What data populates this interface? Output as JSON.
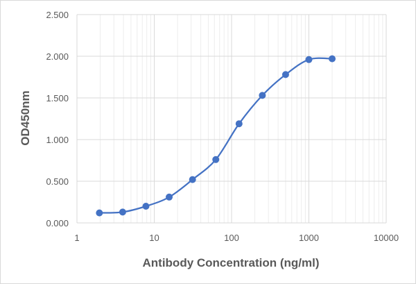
{
  "chart_data": {
    "type": "scatter",
    "title": "",
    "xlabel": "Antibody Concentration (ng/ml)",
    "ylabel": "OD450nm",
    "xscale": "log",
    "xlim": [
      1,
      10000
    ],
    "ylim": [
      0,
      2.5
    ],
    "x_ticks": [
      1,
      10,
      100,
      1000,
      10000
    ],
    "x_tick_labels": [
      "1",
      "10",
      "100",
      "1000",
      "10000"
    ],
    "y_ticks": [
      0,
      0.5,
      1.0,
      1.5,
      2.0,
      2.5
    ],
    "y_tick_labels": [
      "0.000",
      "0.500",
      "1.000",
      "1.500",
      "2.000",
      "2.500"
    ],
    "grid": true,
    "legend": "none",
    "series": [
      {
        "name": "OD450nm",
        "line": "smooth",
        "x": [
          1.95,
          3.9,
          7.8,
          15.6,
          31.25,
          62.5,
          125,
          250,
          500,
          1000,
          2000
        ],
        "y": [
          0.12,
          0.13,
          0.2,
          0.31,
          0.52,
          0.76,
          1.19,
          1.53,
          1.78,
          1.96,
          1.97
        ]
      }
    ],
    "colors": {
      "series": "#4472c4",
      "grid": "#d9d9d9",
      "text": "#595959"
    }
  }
}
